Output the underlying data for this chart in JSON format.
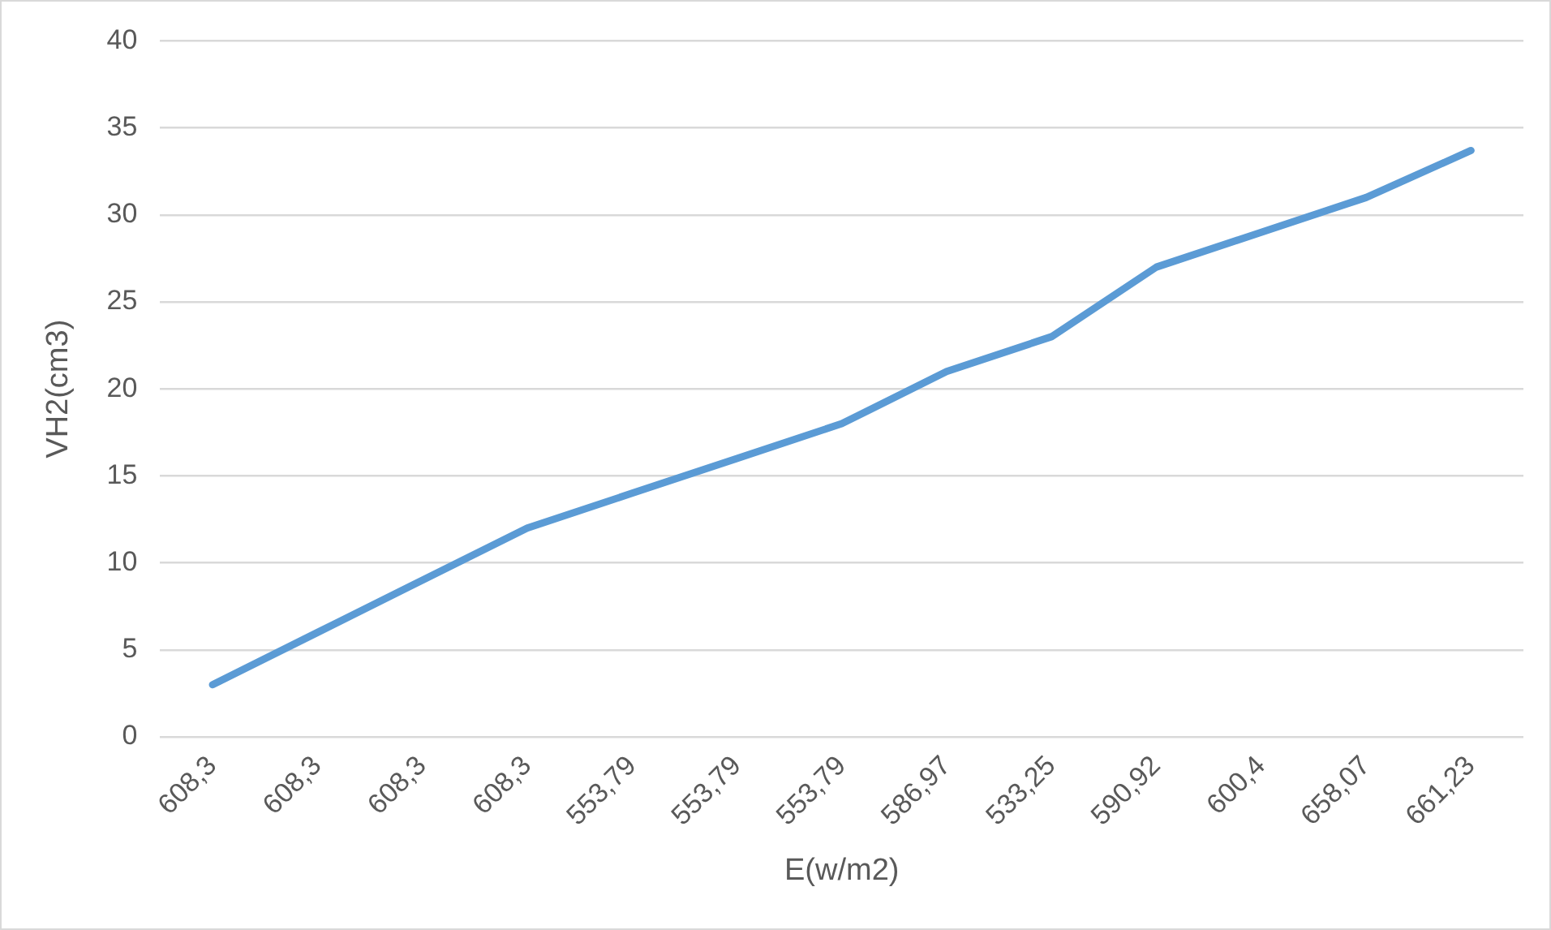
{
  "chart_data": {
    "type": "line",
    "xlabel": "E(w/m2)",
    "ylabel": "VH2(cm3)",
    "categories": [
      "608,3",
      "608,3",
      "608,3",
      "608,3",
      "553,79",
      "553,79",
      "553,79",
      "586,97",
      "533,25",
      "590,92",
      "600,4",
      "658,07",
      "661,23"
    ],
    "series": [
      {
        "color": "#5b9bd5",
        "values": [
          3,
          6,
          9,
          12,
          14,
          16,
          18,
          21,
          23,
          27,
          29,
          31,
          33.7
        ]
      }
    ],
    "ylim": [
      0,
      40
    ],
    "yticks": [
      0,
      5,
      10,
      15,
      20,
      25,
      30,
      35,
      40
    ],
    "grid": "y",
    "marker": "none",
    "line_style": "solid",
    "legend": false
  }
}
